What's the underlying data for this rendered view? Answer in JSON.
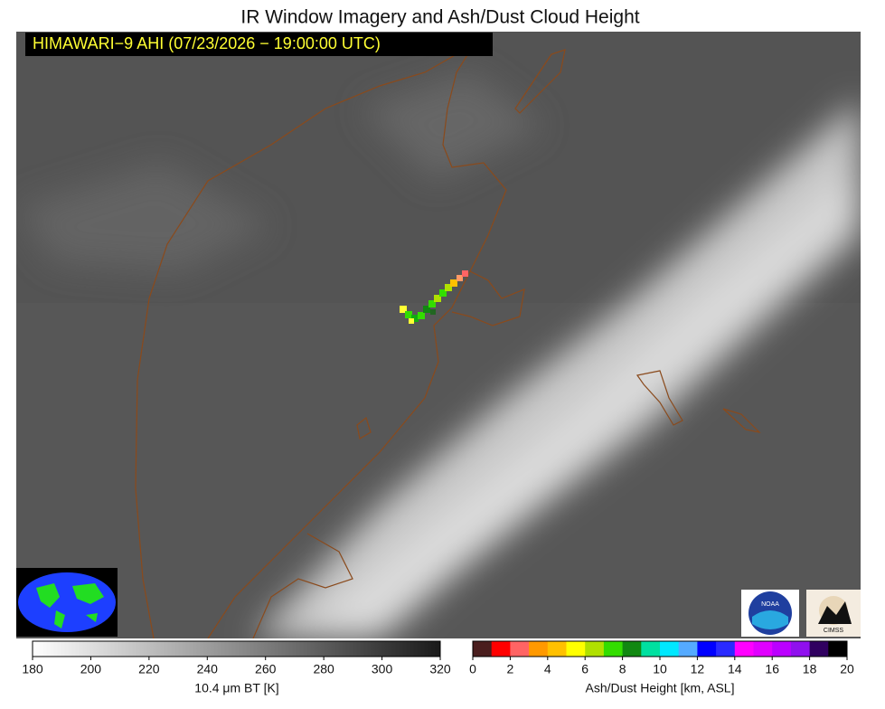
{
  "header": {
    "title": "IR Window Imagery and Ash/Dust Cloud Height",
    "banner": "HIMAWARI−9 AHI (07/23/2026 − 19:00:00 UTC)"
  },
  "ir_colorbar": {
    "label": "10.4 μm BT [K]",
    "ticks": [
      180,
      200,
      220,
      240,
      260,
      280,
      300,
      320
    ]
  },
  "ash_colorbar": {
    "label": "Ash/Dust Height [km, ASL]",
    "ticks": [
      0,
      2,
      4,
      6,
      8,
      10,
      12,
      14,
      16,
      18,
      20
    ],
    "colors": [
      "#4a1e1e",
      "#ff0000",
      "#ff6464",
      "#ff9900",
      "#ffc000",
      "#ffff00",
      "#b0e000",
      "#33dd00",
      "#118811",
      "#00e0a0",
      "#00e8ff",
      "#55aaff",
      "#0000ff",
      "#2a2aff",
      "#ff00ff",
      "#e000ff",
      "#bb00ff",
      "#9010ee",
      "#300060",
      "#000000"
    ]
  },
  "logos": {
    "noaa": "NOAA",
    "cimss": "CIMSS"
  }
}
